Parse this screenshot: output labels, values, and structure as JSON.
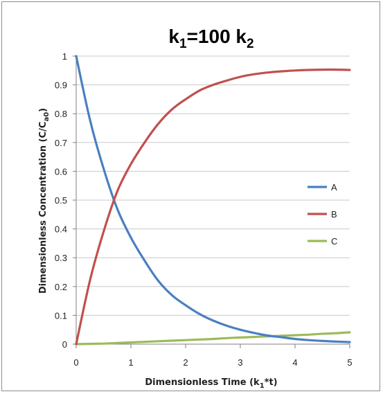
{
  "chart_data": {
    "type": "line",
    "title": "k1=100 k2",
    "title_parts": {
      "k": "k",
      "sub1": "1",
      "mid": "=100 k",
      "sub2": "2"
    },
    "xlabel": "Dimensionless Time (k1*t)",
    "xlabel_parts": {
      "pre": "Dimensionless Time (k",
      "sub": "1",
      "post": "*t)"
    },
    "ylabel": "Dimensionless Concentration (C/Ca0)",
    "ylabel_parts": {
      "pre": "Dimensionless Concentration (C/C",
      "sub": "a0",
      "post": ")"
    },
    "xlim": [
      0,
      5
    ],
    "ylim": [
      0,
      1
    ],
    "x_ticks": [
      "0",
      "1",
      "2",
      "3",
      "4",
      "5"
    ],
    "y_ticks": [
      "0",
      "0.1",
      "0.2",
      "0.3",
      "0.4",
      "0.5",
      "0.6",
      "0.7",
      "0.8",
      "0.9",
      "1"
    ],
    "grid": true,
    "legend_position": "right",
    "x": [
      0,
      0.25,
      0.5,
      0.75,
      1,
      1.25,
      1.5,
      1.75,
      2,
      2.25,
      2.5,
      2.75,
      3,
      3.25,
      3.5,
      3.75,
      4,
      4.25,
      4.5,
      4.75,
      5
    ],
    "series": [
      {
        "name": "A",
        "color": "#4a7fc1",
        "values": [
          1.0,
          0.78,
          0.61,
          0.47,
          0.37,
          0.29,
          0.22,
          0.17,
          0.135,
          0.105,
          0.082,
          0.064,
          0.05,
          0.039,
          0.03,
          0.024,
          0.018,
          0.014,
          0.011,
          0.009,
          0.007
        ]
      },
      {
        "name": "B",
        "color": "#c0504d",
        "values": [
          0.0,
          0.22,
          0.39,
          0.53,
          0.625,
          0.7,
          0.765,
          0.815,
          0.85,
          0.88,
          0.9,
          0.915,
          0.928,
          0.937,
          0.943,
          0.947,
          0.95,
          0.952,
          0.953,
          0.953,
          0.952
        ]
      },
      {
        "name": "C",
        "color": "#9bbb59",
        "values": [
          0.0,
          0.001,
          0.002,
          0.004,
          0.006,
          0.008,
          0.01,
          0.012,
          0.014,
          0.016,
          0.018,
          0.021,
          0.023,
          0.025,
          0.027,
          0.029,
          0.031,
          0.033,
          0.036,
          0.038,
          0.041
        ]
      }
    ]
  }
}
